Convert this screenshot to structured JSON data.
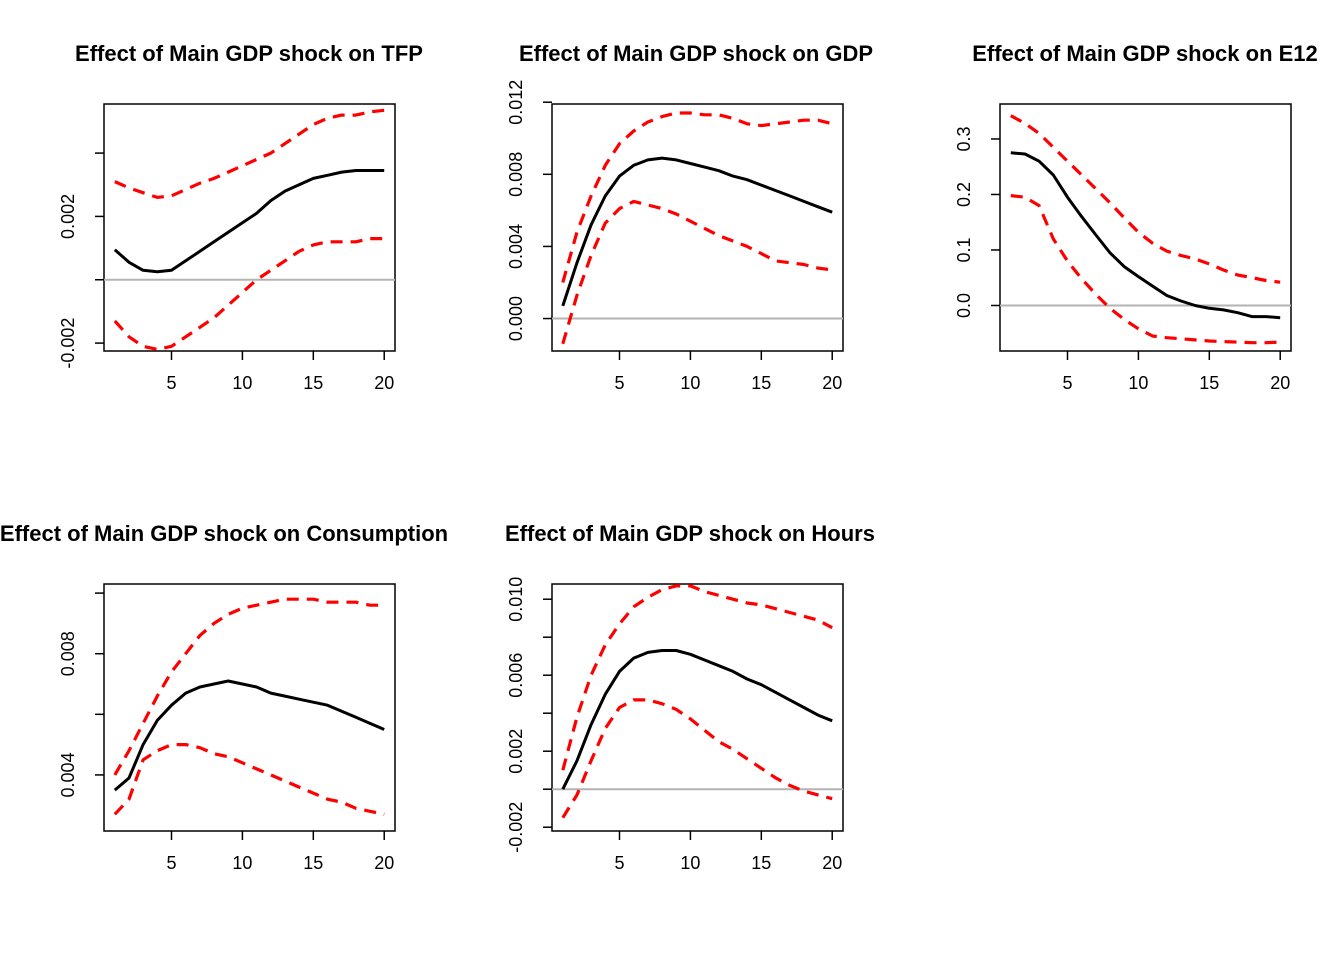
{
  "chart_data": [
    {
      "type": "line",
      "title": "Effect of Main GDP shock on TFP",
      "x": [
        1,
        2,
        3,
        4,
        5,
        6,
        7,
        8,
        9,
        10,
        11,
        12,
        13,
        14,
        15,
        16,
        17,
        18,
        19,
        20
      ],
      "xticks": [
        5,
        10,
        15,
        20
      ],
      "yticks": [
        "-0.002",
        "",
        "0.002",
        ""
      ],
      "ytick_values": [
        -0.002,
        0,
        0.002,
        0.004
      ],
      "ylim": [
        -0.00225,
        0.00555
      ],
      "zero_line": true,
      "series": [
        {
          "role": "upper",
          "color": "#ff0000",
          "dashed": true,
          "values": [
            0.0031,
            0.0029,
            0.00275,
            0.0026,
            0.00265,
            0.00285,
            0.00305,
            0.0032,
            0.0034,
            0.0036,
            0.0038,
            0.004,
            0.0043,
            0.0046,
            0.0049,
            0.0051,
            0.0052,
            0.0052,
            0.0053,
            0.00535
          ]
        },
        {
          "role": "estimate",
          "color": "#000000",
          "dashed": false,
          "values": [
            0.00095,
            0.00055,
            0.0003,
            0.00025,
            0.0003,
            0.0006,
            0.0009,
            0.0012,
            0.0015,
            0.0018,
            0.0021,
            0.0025,
            0.0028,
            0.003,
            0.0032,
            0.0033,
            0.0034,
            0.00345,
            0.00345,
            0.00345
          ]
        },
        {
          "role": "lower",
          "color": "#ff0000",
          "dashed": true,
          "values": [
            -0.0013,
            -0.0018,
            -0.0021,
            -0.0022,
            -0.0021,
            -0.0018,
            -0.0015,
            -0.0012,
            -0.0008,
            -0.0004,
            0.0,
            0.0003,
            0.0006,
            0.0009,
            0.0011,
            0.0012,
            0.0012,
            0.0012,
            0.0013,
            0.0013
          ]
        }
      ]
    },
    {
      "type": "line",
      "title": "Effect of Main GDP shock on GDP",
      "x": [
        1,
        2,
        3,
        4,
        5,
        6,
        7,
        8,
        9,
        10,
        11,
        12,
        13,
        14,
        15,
        16,
        17,
        18,
        19,
        20
      ],
      "xticks": [
        5,
        10,
        15,
        20
      ],
      "yticks": [
        "0.000",
        "0.004",
        "0.008",
        "0.012"
      ],
      "ytick_values": [
        0,
        0.004,
        0.008,
        0.012
      ],
      "ylim": [
        -0.0018,
        0.0119
      ],
      "zero_line": true,
      "series": [
        {
          "role": "upper",
          "color": "#ff0000",
          "dashed": true,
          "values": [
            0.002,
            0.0048,
            0.0068,
            0.0085,
            0.0097,
            0.0104,
            0.0109,
            0.0112,
            0.0114,
            0.0114,
            0.0113,
            0.0113,
            0.0111,
            0.0108,
            0.0107,
            0.0108,
            0.0109,
            0.011,
            0.011,
            0.0108
          ]
        },
        {
          "role": "estimate",
          "color": "#000000",
          "dashed": false,
          "values": [
            0.0007,
            0.0031,
            0.0052,
            0.0068,
            0.0079,
            0.0085,
            0.0088,
            0.0089,
            0.0088,
            0.0086,
            0.0084,
            0.0082,
            0.0079,
            0.0077,
            0.0074,
            0.0071,
            0.0068,
            0.0065,
            0.0062,
            0.0059
          ]
        },
        {
          "role": "lower",
          "color": "#ff0000",
          "dashed": true,
          "values": [
            -0.0014,
            0.0013,
            0.0035,
            0.0053,
            0.0061,
            0.0065,
            0.0063,
            0.0061,
            0.0058,
            0.0054,
            0.005,
            0.0046,
            0.0043,
            0.004,
            0.0036,
            0.0032,
            0.0031,
            0.003,
            0.0028,
            0.0027
          ]
        }
      ]
    },
    {
      "type": "line",
      "title": "Effect of Main GDP shock on E12",
      "x": [
        1,
        2,
        3,
        4,
        5,
        6,
        7,
        8,
        9,
        10,
        11,
        12,
        13,
        14,
        15,
        16,
        17,
        18,
        19,
        20
      ],
      "xticks": [
        5,
        10,
        15,
        20
      ],
      "yticks": [
        "0.0",
        "0.1",
        "0.2",
        "0.3"
      ],
      "ytick_values": [
        0,
        0.1,
        0.2,
        0.3
      ],
      "ylim": [
        -0.082,
        0.363
      ],
      "zero_line": true,
      "series": [
        {
          "role": "upper",
          "color": "#ff0000",
          "dashed": true,
          "values": [
            0.342,
            0.328,
            0.31,
            0.285,
            0.26,
            0.235,
            0.21,
            0.185,
            0.158,
            0.132,
            0.112,
            0.098,
            0.09,
            0.084,
            0.075,
            0.064,
            0.055,
            0.05,
            0.045,
            0.042
          ]
        },
        {
          "role": "estimate",
          "color": "#000000",
          "dashed": false,
          "values": [
            0.275,
            0.273,
            0.26,
            0.235,
            0.195,
            0.16,
            0.127,
            0.095,
            0.07,
            0.052,
            0.035,
            0.018,
            0.008,
            0.0,
            -0.005,
            -0.008,
            -0.013,
            -0.02,
            -0.02,
            -0.022
          ]
        },
        {
          "role": "lower",
          "color": "#ff0000",
          "dashed": true,
          "values": [
            0.198,
            0.195,
            0.18,
            0.12,
            0.08,
            0.048,
            0.02,
            -0.005,
            -0.025,
            -0.042,
            -0.055,
            -0.058,
            -0.06,
            -0.062,
            -0.064,
            -0.065,
            -0.066,
            -0.067,
            -0.067,
            -0.066
          ]
        }
      ]
    },
    {
      "type": "line",
      "title": "Effect of Main GDP shock on Consumption",
      "x": [
        1,
        2,
        3,
        4,
        5,
        6,
        7,
        8,
        9,
        10,
        11,
        12,
        13,
        14,
        15,
        16,
        17,
        18,
        19,
        20
      ],
      "xticks": [
        5,
        10,
        15,
        20
      ],
      "yticks": [
        "0.004",
        "",
        "0.008",
        ""
      ],
      "ytick_values": [
        0.004,
        0.006,
        0.008,
        0.01
      ],
      "ylim": [
        0.00215,
        0.0103
      ],
      "zero_line": false,
      "series": [
        {
          "role": "upper",
          "color": "#ff0000",
          "dashed": true,
          "values": [
            0.004,
            0.0048,
            0.0057,
            0.0066,
            0.0074,
            0.008,
            0.0086,
            0.009,
            0.0093,
            0.0095,
            0.0096,
            0.0097,
            0.0098,
            0.0098,
            0.0098,
            0.0097,
            0.0097,
            0.0097,
            0.0096,
            0.0096
          ]
        },
        {
          "role": "estimate",
          "color": "#000000",
          "dashed": false,
          "values": [
            0.0035,
            0.0039,
            0.005,
            0.0058,
            0.0063,
            0.0067,
            0.0069,
            0.007,
            0.0071,
            0.007,
            0.0069,
            0.0067,
            0.0066,
            0.0065,
            0.0064,
            0.0063,
            0.0061,
            0.0059,
            0.0057,
            0.0055
          ]
        },
        {
          "role": "lower",
          "color": "#ff0000",
          "dashed": true,
          "values": [
            0.0027,
            0.0032,
            0.0045,
            0.0048,
            0.005,
            0.005,
            0.0049,
            0.0047,
            0.0046,
            0.0044,
            0.0042,
            0.004,
            0.0038,
            0.0036,
            0.0034,
            0.0032,
            0.0031,
            0.0029,
            0.0028,
            0.0027
          ]
        }
      ]
    },
    {
      "type": "line",
      "title": "Effect of Main GDP shock on Hours",
      "x": [
        1,
        2,
        3,
        4,
        5,
        6,
        7,
        8,
        9,
        10,
        11,
        12,
        13,
        14,
        15,
        16,
        17,
        18,
        19,
        20
      ],
      "xticks": [
        5,
        10,
        15,
        20
      ],
      "yticks": [
        "-0.002",
        "",
        "0.002",
        "",
        "0.006",
        "",
        "0.010"
      ],
      "ytick_values": [
        -0.002,
        0,
        0.002,
        0.004,
        0.006,
        0.008,
        0.01
      ],
      "ylim": [
        -0.0022,
        0.0108
      ],
      "zero_line": true,
      "series": [
        {
          "role": "upper",
          "color": "#ff0000",
          "dashed": true,
          "values": [
            0.001,
            0.0038,
            0.006,
            0.0076,
            0.0087,
            0.0096,
            0.0101,
            0.0105,
            0.0107,
            0.0107,
            0.0104,
            0.0102,
            0.01,
            0.0098,
            0.0097,
            0.0095,
            0.0093,
            0.0091,
            0.0089,
            0.0085
          ]
        },
        {
          "role": "estimate",
          "color": "#000000",
          "dashed": false,
          "values": [
            0.0,
            0.0015,
            0.0034,
            0.005,
            0.0062,
            0.0069,
            0.0072,
            0.0073,
            0.0073,
            0.0071,
            0.0068,
            0.0065,
            0.0062,
            0.0058,
            0.0055,
            0.0051,
            0.0047,
            0.0043,
            0.0039,
            0.0036
          ]
        },
        {
          "role": "lower",
          "color": "#ff0000",
          "dashed": true,
          "values": [
            -0.0015,
            -0.0003,
            0.0015,
            0.0032,
            0.0043,
            0.0047,
            0.0047,
            0.0045,
            0.0042,
            0.0037,
            0.0031,
            0.0025,
            0.0021,
            0.0016,
            0.0011,
            0.0006,
            0.0002,
            -0.0001,
            -0.0003,
            -0.0005
          ]
        }
      ]
    }
  ]
}
